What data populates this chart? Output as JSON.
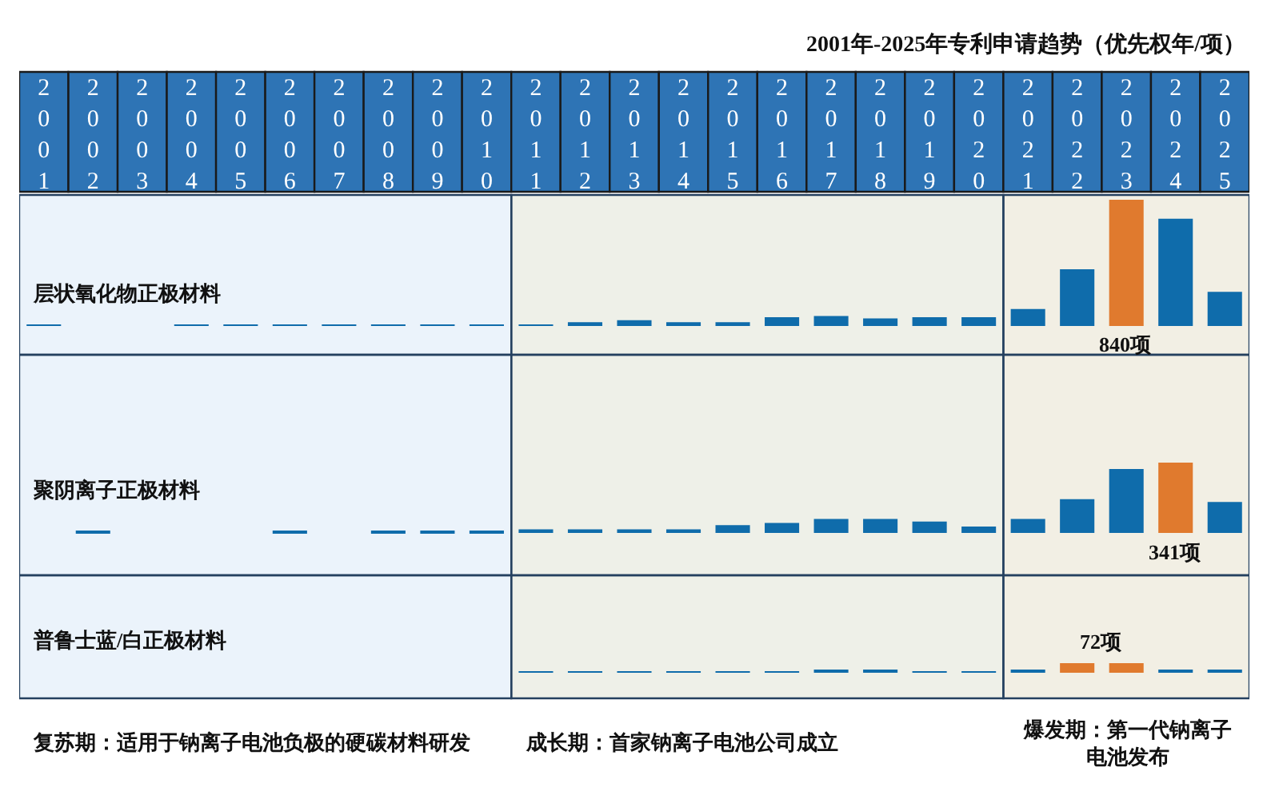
{
  "chart_data": [
    {
      "type": "bar",
      "title": "2001年-2025年专利申请趋势（优先权年/项）",
      "ylabel": "层状氧化物正极材料",
      "tick_labels": "x",
      "categories": [
        "2001",
        "2002",
        "2003",
        "2004",
        "2005",
        "2006",
        "2007",
        "2008",
        "2009",
        "2010",
        "2011",
        "2012",
        "2013",
        "2014",
        "2015",
        "2016",
        "2017",
        "2018",
        "2019",
        "2020",
        "2021",
        "2022",
        "2023",
        "2024",
        "2025"
      ],
      "values": [
        8,
        null,
        null,
        8,
        8,
        8,
        8,
        8,
        8,
        8,
        8,
        25,
        38,
        25,
        25,
        59,
        67,
        50,
        59,
        59,
        113,
        378,
        840,
        714,
        227
      ],
      "colors": [
        "#0f6cab",
        "#0f6cab",
        "#0f6cab",
        "#0f6cab",
        "#0f6cab",
        "#0f6cab",
        "#0f6cab",
        "#0f6cab",
        "#0f6cab",
        "#0f6cab",
        "#0f6cab",
        "#0f6cab",
        "#0f6cab",
        "#0f6cab",
        "#0f6cab",
        "#0f6cab",
        "#0f6cab",
        "#0f6cab",
        "#0f6cab",
        "#0f6cab",
        "#0f6cab",
        "#0f6cab",
        "#e07a2e",
        "#0f6cab",
        "#0f6cab"
      ],
      "value_labels": [
        null,
        null,
        null,
        null,
        null,
        null,
        null,
        null,
        null,
        null,
        null,
        null,
        null,
        null,
        null,
        null,
        null,
        null,
        null,
        null,
        null,
        null,
        "840项",
        null,
        null
      ],
      "bands": [
        {
          "axis": "x",
          "from": "2001",
          "to": "2010",
          "color": "#ebf3fb"
        },
        {
          "axis": "x",
          "from": "2011",
          "to": "2020",
          "color": "#eef0e8"
        },
        {
          "axis": "x",
          "from": "2021",
          "to": "2025",
          "color": "#f2efe4"
        }
      ]
    },
    {
      "type": "bar",
      "ylabel": "聚阴离子正极材料",
      "tick_labels": false,
      "categories": [
        "2001",
        "2002",
        "2003",
        "2004",
        "2005",
        "2006",
        "2007",
        "2008",
        "2009",
        "2010",
        "2011",
        "2012",
        "2013",
        "2014",
        "2015",
        "2016",
        "2017",
        "2018",
        "2019",
        "2020",
        "2021",
        "2022",
        "2023",
        "2024",
        "2025"
      ],
      "values": [
        null,
        7,
        null,
        null,
        null,
        7,
        null,
        7,
        7,
        7,
        17,
        17,
        17,
        17,
        38,
        48,
        68,
        68,
        55,
        31,
        68,
        164,
        310,
        341,
        150
      ],
      "colors": [
        "#0f6cab",
        "#0f6cab",
        "#0f6cab",
        "#0f6cab",
        "#0f6cab",
        "#0f6cab",
        "#0f6cab",
        "#0f6cab",
        "#0f6cab",
        "#0f6cab",
        "#0f6cab",
        "#0f6cab",
        "#0f6cab",
        "#0f6cab",
        "#0f6cab",
        "#0f6cab",
        "#0f6cab",
        "#0f6cab",
        "#0f6cab",
        "#0f6cab",
        "#0f6cab",
        "#0f6cab",
        "#0f6cab",
        "#e07a2e",
        "#0f6cab"
      ],
      "value_labels": [
        null,
        null,
        null,
        null,
        null,
        null,
        null,
        null,
        null,
        null,
        null,
        null,
        null,
        null,
        null,
        null,
        null,
        null,
        null,
        null,
        null,
        null,
        null,
        "341项",
        null
      ],
      "bands": [
        {
          "axis": "x",
          "from": "2001",
          "to": "2010",
          "color": "#ebf3fb"
        },
        {
          "axis": "x",
          "from": "2011",
          "to": "2020",
          "color": "#eef0e8"
        },
        {
          "axis": "x",
          "from": "2021",
          "to": "2025",
          "color": "#f2efe4"
        }
      ]
    },
    {
      "type": "bar",
      "ylabel": "普鲁士蓝/白正极材料",
      "tick_labels": false,
      "categories": [
        "2001",
        "2002",
        "2003",
        "2004",
        "2005",
        "2006",
        "2007",
        "2008",
        "2009",
        "2010",
        "2011",
        "2012",
        "2013",
        "2014",
        "2015",
        "2016",
        "2017",
        "2018",
        "2019",
        "2020",
        "2021",
        "2022",
        "2023",
        "2024",
        "2025"
      ],
      "values": [
        null,
        null,
        null,
        null,
        null,
        null,
        null,
        null,
        null,
        null,
        7,
        7,
        7,
        7,
        7,
        7,
        18,
        18,
        7,
        7,
        22,
        72,
        72,
        22,
        22
      ],
      "colors": [
        "#0f6cab",
        "#0f6cab",
        "#0f6cab",
        "#0f6cab",
        "#0f6cab",
        "#0f6cab",
        "#0f6cab",
        "#0f6cab",
        "#0f6cab",
        "#0f6cab",
        "#0f6cab",
        "#0f6cab",
        "#0f6cab",
        "#0f6cab",
        "#0f6cab",
        "#0f6cab",
        "#0f6cab",
        "#0f6cab",
        "#0f6cab",
        "#0f6cab",
        "#0f6cab",
        "#e07a2e",
        "#e07a2e",
        "#0f6cab",
        "#0f6cab"
      ],
      "value_labels": [
        null,
        null,
        null,
        null,
        null,
        null,
        null,
        null,
        null,
        null,
        null,
        null,
        null,
        null,
        null,
        null,
        null,
        null,
        null,
        null,
        null,
        "72项",
        null,
        null,
        null
      ],
      "bands": [
        {
          "axis": "x",
          "from": "2001",
          "to": "2010",
          "color": "#ebf3fb",
          "label": "复苏期：适用于钠离子电池负极的硬碳材料研发"
        },
        {
          "axis": "x",
          "from": "2011",
          "to": "2020",
          "color": "#eef0e8",
          "label": "成长期：首家钠离子电池公司成立"
        },
        {
          "axis": "x",
          "from": "2021",
          "to": "2025",
          "color": "#f2efe4",
          "label": "爆发期：第一代钠离子电池发布"
        }
      ]
    }
  ]
}
